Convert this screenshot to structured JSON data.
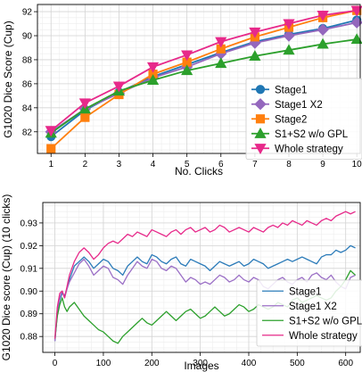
{
  "chart_data": [
    {
      "type": "line",
      "xlabel": "No. Clicks",
      "ylabel": "G1020 Dice Score (Cup)",
      "xlim": [
        0.6,
        10.1
      ],
      "ylim": [
        80.2,
        92.6
      ],
      "xticks": [
        1,
        2,
        3,
        4,
        5,
        6,
        7,
        8,
        9,
        10
      ],
      "yticks": [
        82,
        84,
        86,
        88,
        90,
        92
      ],
      "grid": true,
      "legend_position": "lower-right",
      "x": [
        1,
        2,
        3,
        4,
        5,
        6,
        7,
        8,
        9,
        10
      ],
      "series": [
        {
          "name": "Stage1",
          "color": "#1f77b4",
          "marker": "circle",
          "values": [
            81.6,
            83.8,
            85.3,
            86.6,
            87.6,
            88.6,
            89.5,
            90.1,
            90.6,
            91.3
          ]
        },
        {
          "name": "Stage1 X2",
          "color": "#9467bd",
          "marker": "diamond",
          "values": [
            82.0,
            83.9,
            85.2,
            86.5,
            87.4,
            88.5,
            89.4,
            90.0,
            90.5,
            91.1
          ]
        },
        {
          "name": "Stage2",
          "color": "#ff7f0e",
          "marker": "square",
          "values": [
            80.6,
            83.2,
            85.1,
            86.8,
            87.8,
            88.9,
            89.9,
            90.7,
            91.5,
            92.1
          ]
        },
        {
          "name": "S1+S2 w/o GPL",
          "color": "#2ca02c",
          "marker": "triangle-up",
          "values": [
            81.9,
            83.9,
            85.4,
            86.3,
            87.1,
            87.7,
            88.3,
            88.8,
            89.3,
            89.7
          ]
        },
        {
          "name": "Whole strategy",
          "color": "#e7298a",
          "marker": "triangle-down",
          "values": [
            82.1,
            84.4,
            85.8,
            87.4,
            88.4,
            89.5,
            90.3,
            91.0,
            91.7,
            92.1
          ]
        }
      ]
    },
    {
      "type": "line",
      "xlabel": "Images",
      "ylabel": "G1020 Dice score (Cup) (10 clicks)",
      "xlim": [
        -25,
        630
      ],
      "ylim": [
        0.873,
        0.939
      ],
      "xticks": [
        0,
        100,
        200,
        300,
        400,
        500,
        600
      ],
      "yticks": [
        0.88,
        0.89,
        0.9,
        0.91,
        0.92,
        0.93
      ],
      "ytick_labels": [
        "0.88",
        "0.89",
        "0.90",
        "0.91",
        "0.92",
        "0.93"
      ],
      "grid": true,
      "legend_position": "lower-right",
      "series": [
        {
          "name": "Stage1",
          "color": "#2b7bb9",
          "x": [
            0,
            5,
            10,
            15,
            20,
            25,
            30,
            40,
            50,
            60,
            70,
            80,
            90,
            100,
            110,
            120,
            130,
            140,
            150,
            160,
            170,
            180,
            190,
            200,
            210,
            220,
            230,
            240,
            250,
            260,
            270,
            280,
            290,
            300,
            310,
            320,
            330,
            340,
            350,
            360,
            370,
            380,
            390,
            400,
            410,
            420,
            430,
            440,
            450,
            460,
            470,
            480,
            490,
            500,
            510,
            520,
            530,
            540,
            550,
            560,
            570,
            580,
            590,
            600,
            610,
            620
          ],
          "values": [
            0.878,
            0.89,
            0.896,
            0.899,
            0.898,
            0.901,
            0.905,
            0.911,
            0.913,
            0.915,
            0.913,
            0.91,
            0.912,
            0.914,
            0.913,
            0.91,
            0.909,
            0.907,
            0.911,
            0.913,
            0.915,
            0.913,
            0.912,
            0.916,
            0.915,
            0.913,
            0.912,
            0.914,
            0.915,
            0.912,
            0.911,
            0.914,
            0.913,
            0.912,
            0.911,
            0.909,
            0.911,
            0.913,
            0.912,
            0.911,
            0.912,
            0.913,
            0.911,
            0.912,
            0.914,
            0.913,
            0.912,
            0.91,
            0.911,
            0.912,
            0.913,
            0.914,
            0.913,
            0.914,
            0.915,
            0.914,
            0.913,
            0.912,
            0.915,
            0.916,
            0.916,
            0.918,
            0.917,
            0.918,
            0.92,
            0.919
          ]
        },
        {
          "name": "Stage1 X2",
          "color": "#9b6fc6",
          "x": [
            0,
            5,
            10,
            15,
            20,
            25,
            30,
            40,
            50,
            60,
            70,
            80,
            90,
            100,
            110,
            120,
            130,
            140,
            150,
            160,
            170,
            180,
            190,
            200,
            210,
            220,
            230,
            240,
            250,
            260,
            270,
            280,
            290,
            300,
            310,
            320,
            330,
            340,
            350,
            360,
            370,
            380,
            390,
            400,
            410,
            420,
            430,
            440,
            450,
            460,
            470,
            480,
            490,
            500,
            510,
            520,
            530,
            540,
            550,
            560,
            570,
            580,
            590,
            600,
            610,
            620
          ],
          "values": [
            0.878,
            0.891,
            0.897,
            0.9,
            0.897,
            0.901,
            0.904,
            0.908,
            0.912,
            0.914,
            0.911,
            0.907,
            0.909,
            0.911,
            0.91,
            0.906,
            0.905,
            0.903,
            0.907,
            0.91,
            0.913,
            0.911,
            0.91,
            0.914,
            0.913,
            0.91,
            0.909,
            0.911,
            0.91,
            0.907,
            0.904,
            0.906,
            0.905,
            0.903,
            0.904,
            0.903,
            0.905,
            0.907,
            0.906,
            0.904,
            0.905,
            0.907,
            0.905,
            0.904,
            0.906,
            0.905,
            0.902,
            0.901,
            0.903,
            0.905,
            0.906,
            0.904,
            0.903,
            0.905,
            0.906,
            0.904,
            0.907,
            0.908,
            0.906,
            0.905,
            0.907,
            0.904,
            0.902,
            0.901,
            0.906,
            0.907
          ]
        },
        {
          "name": "S1+S2 w/o GPL",
          "color": "#2ca02c",
          "x": [
            0,
            5,
            10,
            15,
            20,
            25,
            30,
            40,
            50,
            60,
            70,
            80,
            90,
            100,
            110,
            120,
            130,
            140,
            150,
            160,
            170,
            180,
            190,
            200,
            210,
            220,
            230,
            240,
            250,
            260,
            270,
            280,
            290,
            300,
            310,
            320,
            330,
            340,
            350,
            360,
            370,
            380,
            390,
            400,
            410,
            420,
            430,
            440,
            450,
            460,
            470,
            480,
            490,
            500,
            510,
            520,
            530,
            540,
            550,
            560,
            570,
            580,
            590,
            600,
            610,
            620
          ],
          "values": [
            0.879,
            0.889,
            0.894,
            0.897,
            0.893,
            0.891,
            0.893,
            0.895,
            0.892,
            0.889,
            0.887,
            0.885,
            0.883,
            0.882,
            0.88,
            0.878,
            0.877,
            0.88,
            0.882,
            0.884,
            0.886,
            0.888,
            0.886,
            0.885,
            0.887,
            0.889,
            0.891,
            0.889,
            0.887,
            0.889,
            0.891,
            0.892,
            0.89,
            0.888,
            0.889,
            0.891,
            0.893,
            0.891,
            0.889,
            0.89,
            0.892,
            0.894,
            0.893,
            0.891,
            0.892,
            0.894,
            0.893,
            0.892,
            0.893,
            0.895,
            0.894,
            0.893,
            0.896,
            0.897,
            0.895,
            0.896,
            0.897,
            0.898,
            0.897,
            0.896,
            0.897,
            0.9,
            0.902,
            0.905,
            0.909,
            0.907
          ]
        },
        {
          "name": "Whole strategy",
          "color": "#e7298a",
          "x": [
            0,
            5,
            10,
            15,
            20,
            25,
            30,
            40,
            50,
            60,
            70,
            80,
            90,
            100,
            110,
            120,
            130,
            140,
            150,
            160,
            170,
            180,
            190,
            200,
            210,
            220,
            230,
            240,
            250,
            260,
            270,
            280,
            290,
            300,
            310,
            320,
            330,
            340,
            350,
            360,
            370,
            380,
            390,
            400,
            410,
            420,
            430,
            440,
            450,
            460,
            470,
            480,
            490,
            500,
            510,
            520,
            530,
            540,
            550,
            560,
            570,
            580,
            590,
            600,
            610,
            620
          ],
          "values": [
            0.879,
            0.893,
            0.899,
            0.9,
            0.897,
            0.902,
            0.907,
            0.913,
            0.917,
            0.919,
            0.917,
            0.914,
            0.916,
            0.919,
            0.921,
            0.922,
            0.921,
            0.923,
            0.925,
            0.924,
            0.926,
            0.925,
            0.924,
            0.927,
            0.926,
            0.925,
            0.924,
            0.926,
            0.927,
            0.925,
            0.927,
            0.928,
            0.926,
            0.927,
            0.928,
            0.926,
            0.927,
            0.929,
            0.928,
            0.926,
            0.927,
            0.928,
            0.927,
            0.926,
            0.928,
            0.927,
            0.926,
            0.928,
            0.929,
            0.928,
            0.93,
            0.929,
            0.931,
            0.93,
            0.929,
            0.931,
            0.93,
            0.929,
            0.931,
            0.932,
            0.931,
            0.933,
            0.934,
            0.935,
            0.934,
            0.935
          ]
        }
      ]
    }
  ]
}
